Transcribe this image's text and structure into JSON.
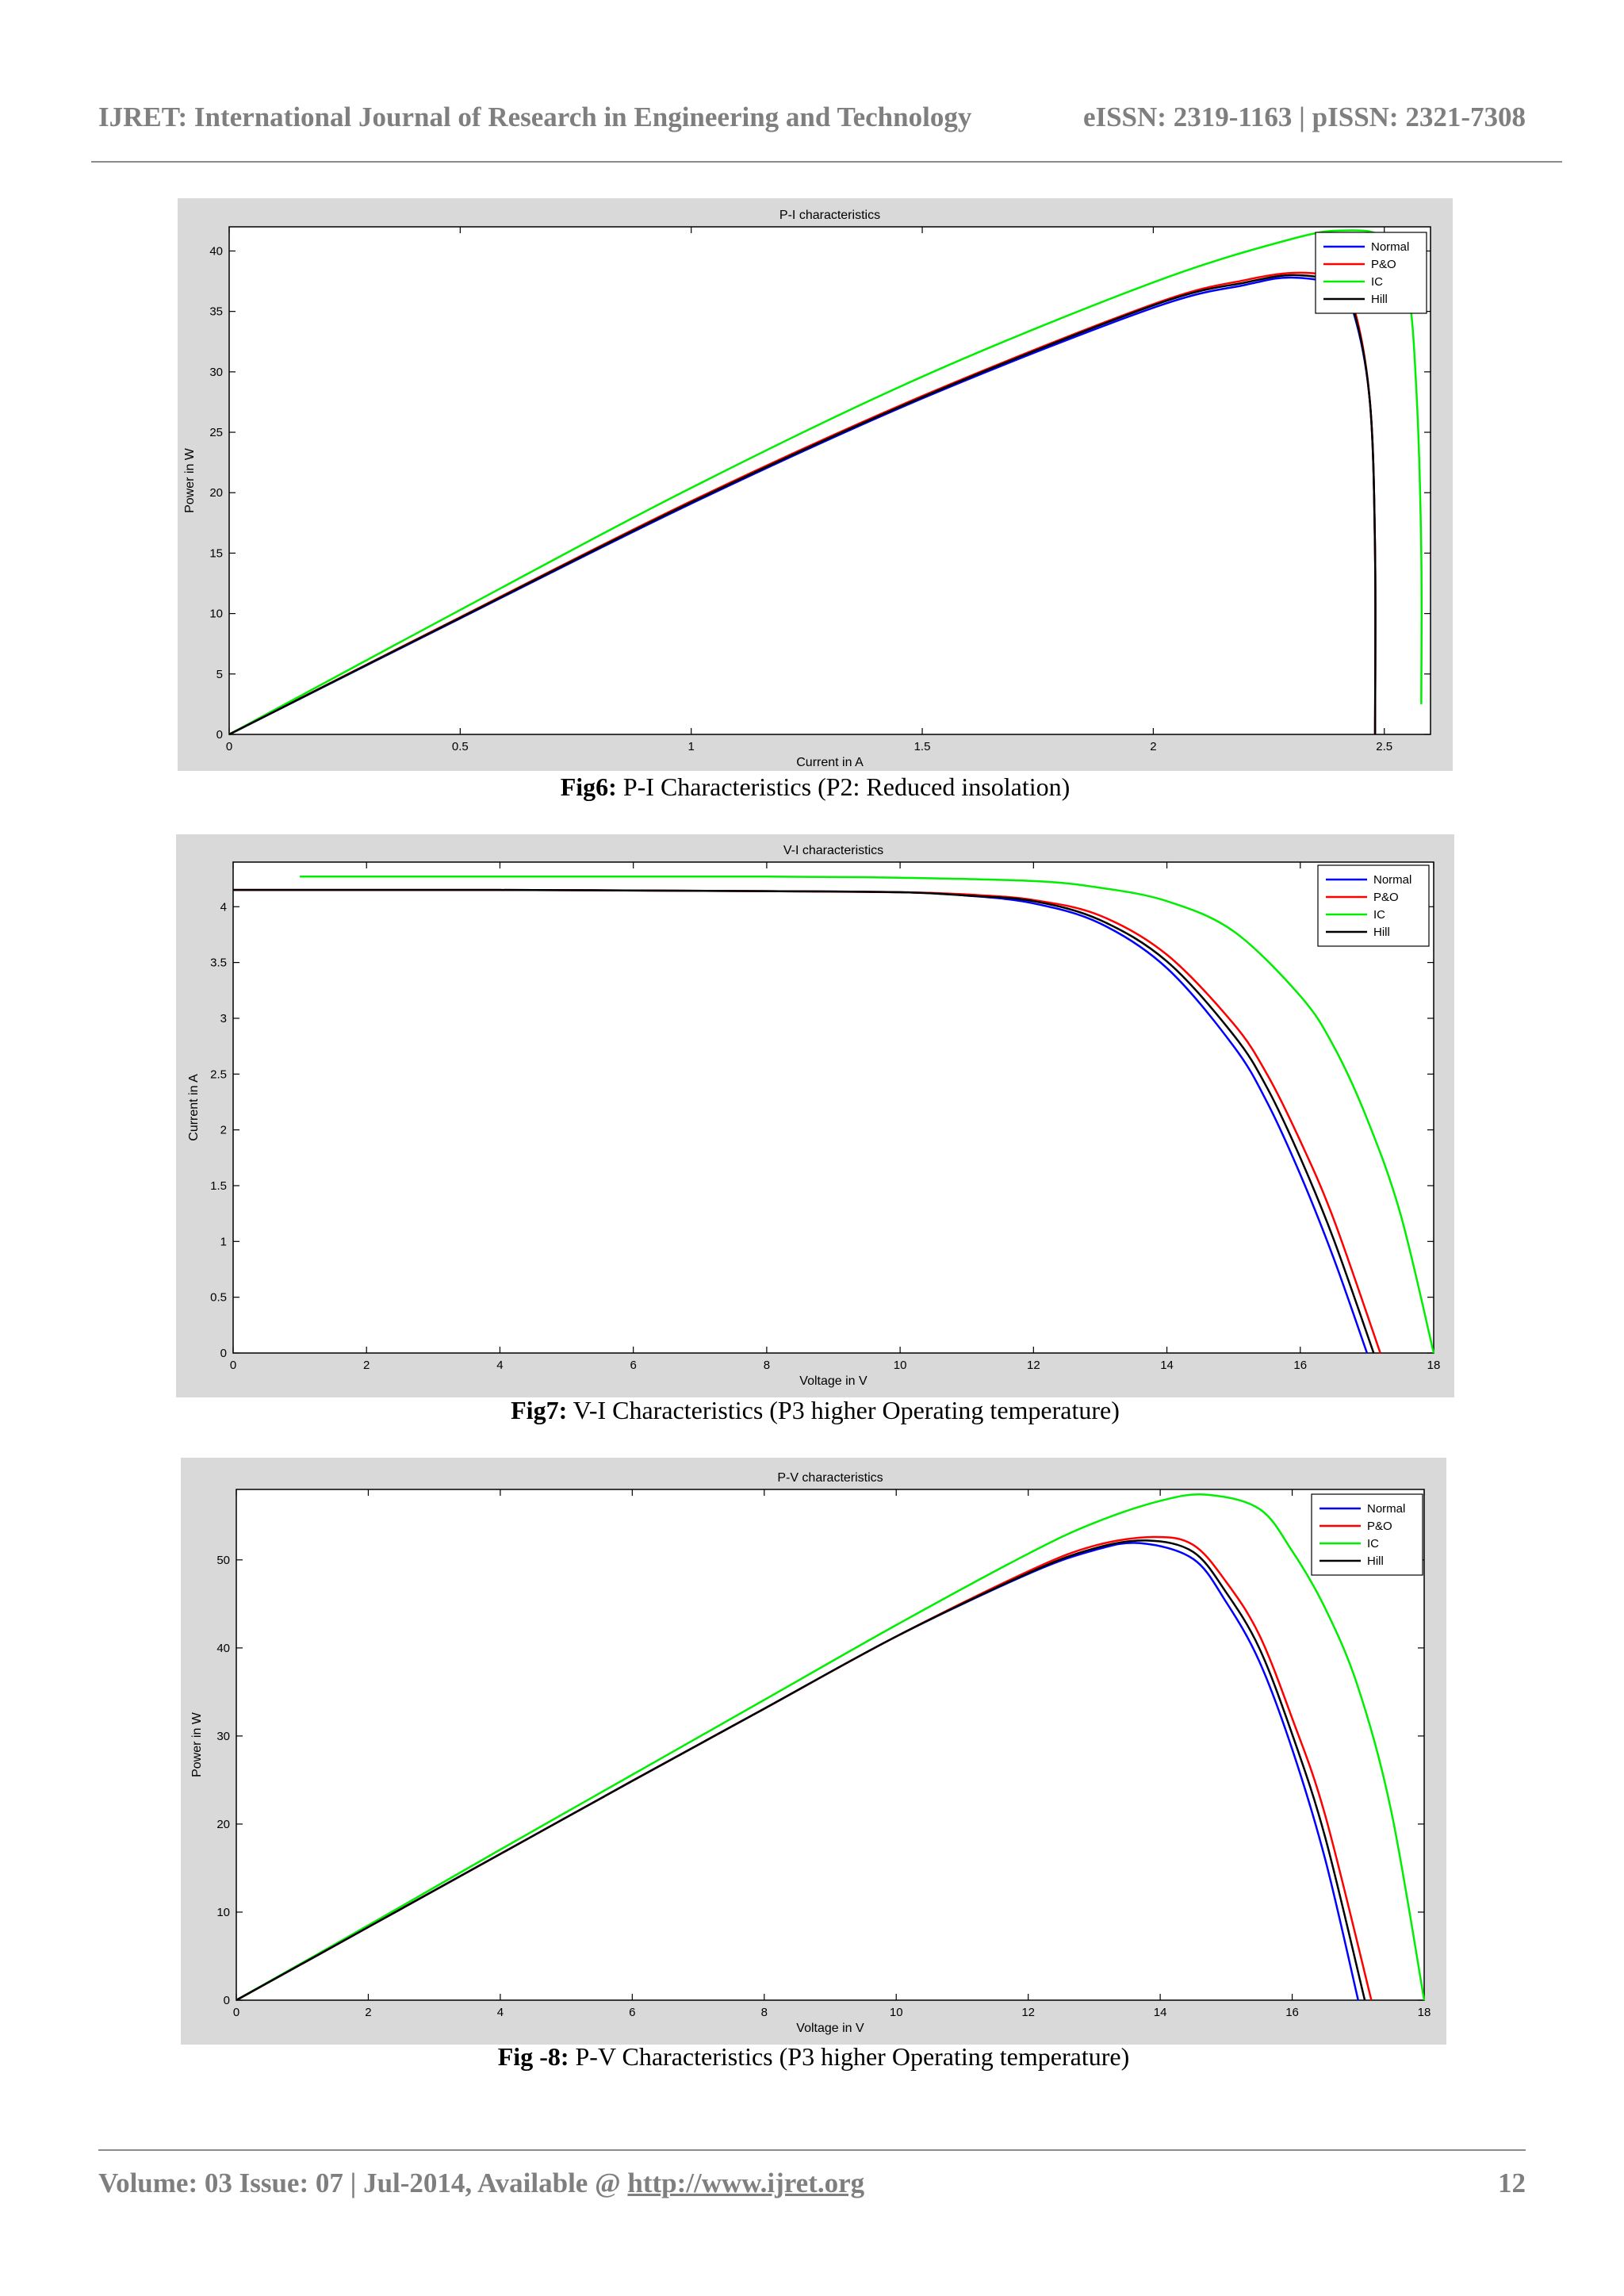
{
  "header": {
    "journal": "IJRET: International Journal of Research in Engineering and Technology",
    "issn": "eISSN: 2319-1163 | pISSN: 2321-7308"
  },
  "footer": {
    "volume_text": "Volume: 03 Issue: 07 | Jul-2014, Available @ ",
    "url": "http://www.ijret.org",
    "page_number": "12"
  },
  "colors": {
    "Normal": "#0000ff",
    "P&O": "#ff0000",
    "IC": "#00ee00",
    "Hill": "#000000",
    "figure_background": "#d9d9d9",
    "plot_background": "#ffffff"
  },
  "figures": [
    {
      "caption_label": "Fig6:",
      "caption_text": " P-I Characteristics (P2: Reduced insolation)"
    },
    {
      "caption_label": "Fig7:",
      "caption_text": " V-I Characteristics (P3 higher Operating temperature)"
    },
    {
      "caption_label": "Fig -8:",
      "caption_text": " P-V Characteristics (P3 higher Operating temperature)"
    }
  ],
  "chart_data": [
    {
      "type": "line",
      "title": "P-I characteristics",
      "xlabel": "Current in A",
      "ylabel": "Power in W",
      "xlim": [
        0,
        2.6
      ],
      "ylim": [
        0,
        42
      ],
      "xticks": [
        "0",
        "0.5",
        "1",
        "1.5",
        "2",
        "2.5"
      ],
      "yticks": [
        "0",
        "5",
        "10",
        "15",
        "20",
        "25",
        "30",
        "35",
        "40"
      ],
      "legend_position": "top-right",
      "series": [
        {
          "name": "Normal",
          "x": [
            0,
            0.5,
            1.0,
            1.5,
            2.0,
            2.2,
            2.3,
            2.4,
            2.44,
            2.47,
            2.48,
            2.48
          ],
          "y": [
            0,
            9.6,
            19.1,
            27.8,
            35.3,
            37.2,
            37.8,
            37.0,
            34.0,
            27.0,
            15.0,
            0
          ]
        },
        {
          "name": "P&O",
          "x": [
            0,
            0.5,
            1.0,
            1.5,
            2.0,
            2.2,
            2.32,
            2.4,
            2.44,
            2.47,
            2.48,
            2.48
          ],
          "y": [
            0,
            9.7,
            19.3,
            28.0,
            35.6,
            37.6,
            38.2,
            37.5,
            34.5,
            27.0,
            15.0,
            0
          ]
        },
        {
          "name": "IC",
          "x": [
            0,
            0.5,
            1.0,
            1.5,
            2.0,
            2.3,
            2.42,
            2.5,
            2.55,
            2.57,
            2.58,
            2.58
          ],
          "y": [
            0,
            10.3,
            20.4,
            29.6,
            37.4,
            41.0,
            41.7,
            41.0,
            37.0,
            28.0,
            15.0,
            2.5
          ]
        },
        {
          "name": "Hill",
          "x": [
            0,
            0.5,
            1.0,
            1.5,
            2.0,
            2.2,
            2.31,
            2.4,
            2.44,
            2.47,
            2.48,
            2.48
          ],
          "y": [
            0,
            9.65,
            19.2,
            27.9,
            35.5,
            37.4,
            38.0,
            37.2,
            34.2,
            27.0,
            15.0,
            0
          ]
        }
      ]
    },
    {
      "type": "line",
      "title": "V-I characteristics",
      "xlabel": "Voltage in V",
      "ylabel": "Current in A",
      "xlim": [
        0,
        18
      ],
      "ylim": [
        0,
        4.4
      ],
      "xticks": [
        "0",
        "2",
        "4",
        "6",
        "8",
        "10",
        "12",
        "14",
        "16",
        "18"
      ],
      "yticks": [
        "0",
        "0.5",
        "1",
        "1.5",
        "2",
        "2.5",
        "3",
        "3.5",
        "4"
      ],
      "legend_position": "top-right",
      "series": [
        {
          "name": "Normal",
          "x": [
            0,
            4,
            8,
            10,
            11,
            12,
            13,
            14,
            15,
            15.5,
            16,
            16.5,
            17.0
          ],
          "y": [
            4.15,
            4.15,
            4.14,
            4.13,
            4.1,
            4.03,
            3.85,
            3.45,
            2.75,
            2.25,
            1.6,
            0.85,
            0
          ]
        },
        {
          "name": "P&O",
          "x": [
            0,
            4,
            8,
            10,
            11,
            12,
            13,
            14,
            15,
            15.5,
            16,
            16.5,
            17.2
          ],
          "y": [
            4.15,
            4.15,
            4.14,
            4.13,
            4.11,
            4.06,
            3.92,
            3.57,
            2.95,
            2.5,
            1.9,
            1.2,
            0
          ]
        },
        {
          "name": "IC",
          "x": [
            1,
            4,
            8,
            10,
            12,
            13,
            14,
            15,
            16,
            16.5,
            17,
            17.5,
            18.0
          ],
          "y": [
            4.27,
            4.27,
            4.27,
            4.26,
            4.23,
            4.17,
            4.05,
            3.78,
            3.2,
            2.75,
            2.1,
            1.25,
            0
          ]
        },
        {
          "name": "Hill",
          "x": [
            0,
            4,
            8,
            10,
            11,
            12,
            13,
            14,
            15,
            15.5,
            16,
            16.5,
            17.1
          ],
          "y": [
            4.15,
            4.15,
            4.14,
            4.13,
            4.1,
            4.05,
            3.88,
            3.51,
            2.85,
            2.38,
            1.75,
            1.02,
            0
          ]
        }
      ]
    },
    {
      "type": "line",
      "title": "P-V characteristics",
      "xlabel": "Voltage in V",
      "ylabel": "Power in W",
      "xlim": [
        0,
        18
      ],
      "ylim": [
        0,
        58
      ],
      "xticks": [
        "0",
        "2",
        "4",
        "6",
        "8",
        "10",
        "12",
        "14",
        "16",
        "18"
      ],
      "yticks": [
        "0",
        "10",
        "20",
        "30",
        "40",
        "50"
      ],
      "legend_position": "top-right",
      "series": [
        {
          "name": "Normal",
          "x": [
            0,
            2,
            4,
            6,
            8,
            10,
            12,
            13,
            13.7,
            14.5,
            15,
            15.5,
            16,
            16.5,
            17.0
          ],
          "y": [
            0,
            8.3,
            16.6,
            24.9,
            33.1,
            41.3,
            48.4,
            51.1,
            51.9,
            50.1,
            45.2,
            38.5,
            28.5,
            16.0,
            0
          ]
        },
        {
          "name": "P&O",
          "x": [
            0,
            2,
            4,
            6,
            8,
            10,
            12,
            13,
            13.9,
            14.5,
            15,
            15.5,
            16,
            16.5,
            17.2
          ],
          "y": [
            0,
            8.3,
            16.6,
            24.9,
            33.1,
            41.3,
            48.7,
            51.6,
            52.6,
            51.7,
            47.5,
            41.5,
            32.0,
            21.0,
            0
          ]
        },
        {
          "name": "IC",
          "x": [
            0,
            2,
            4,
            6,
            8,
            10,
            12,
            13,
            14,
            14.7,
            15.5,
            16,
            16.5,
            17,
            17.5,
            18.0
          ],
          "y": [
            0,
            8.5,
            17.1,
            25.6,
            34.1,
            42.6,
            50.7,
            54.2,
            56.7,
            57.4,
            55.8,
            51.0,
            44.5,
            35.5,
            21.5,
            0
          ]
        },
        {
          "name": "Hill",
          "x": [
            0,
            2,
            4,
            6,
            8,
            10,
            12,
            13,
            13.8,
            14.5,
            15,
            15.5,
            16,
            16.5,
            17.1
          ],
          "y": [
            0,
            8.3,
            16.6,
            24.9,
            33.1,
            41.3,
            48.5,
            51.3,
            52.2,
            50.9,
            46.3,
            40.0,
            30.2,
            18.5,
            0
          ]
        }
      ]
    }
  ]
}
